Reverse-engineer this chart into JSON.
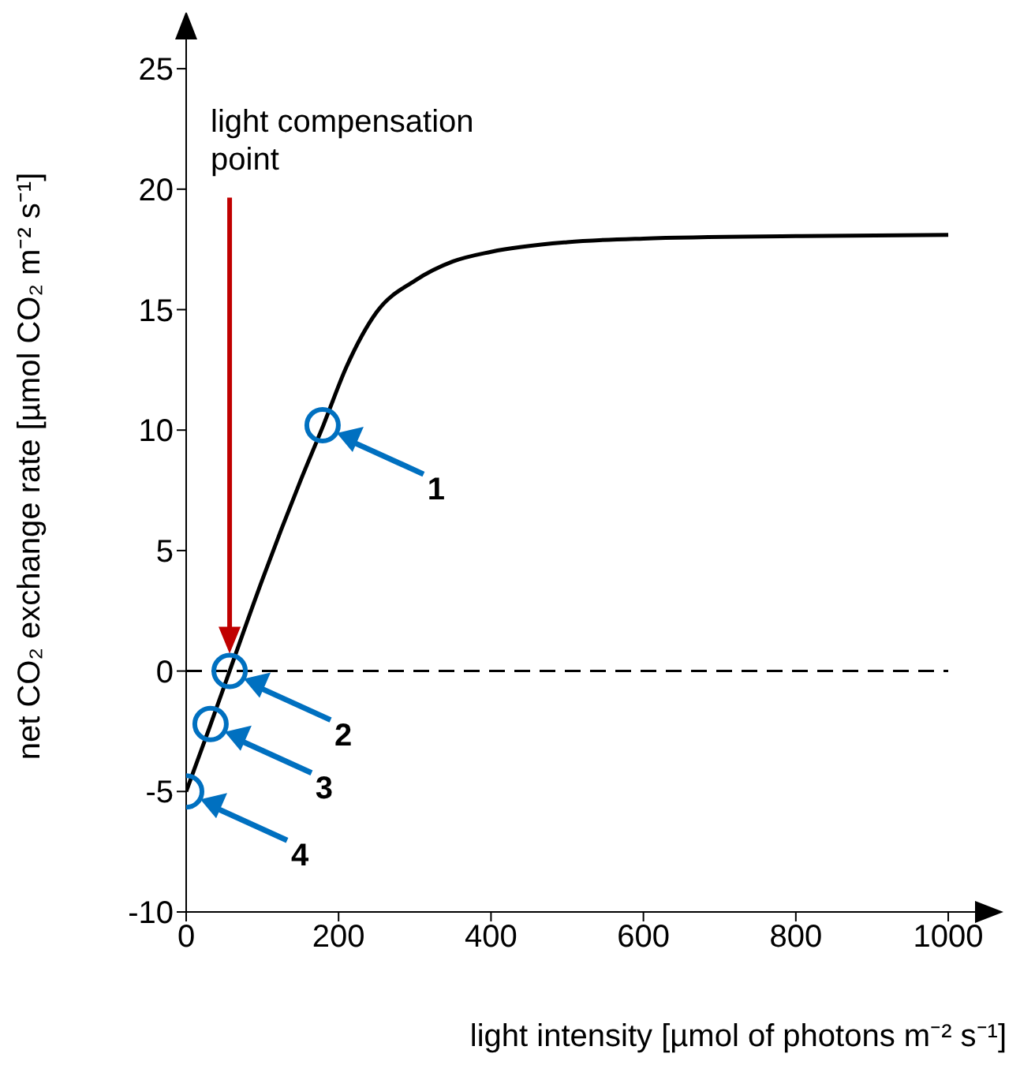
{
  "chart_data": {
    "type": "line",
    "xlabel": "light intensity [µmol of photons m⁻² s⁻¹]",
    "ylabel": "net CO₂ exchange rate  [µmol CO₂ m⁻² s⁻¹]",
    "xlim": [
      0,
      1060
    ],
    "ylim": [
      -10,
      27
    ],
    "xticks": [
      0,
      200,
      400,
      600,
      800,
      1000
    ],
    "yticks": [
      -10,
      -5,
      0,
      5,
      10,
      15,
      20,
      25
    ],
    "series": [
      {
        "type": "line",
        "color": "#000000",
        "marker": "none",
        "x": [
          0,
          30,
          57,
          100,
          150,
          180,
          210,
          250,
          300,
          350,
          400,
          500,
          600,
          800,
          1000
        ],
        "values": [
          -5,
          -2.4,
          0,
          3.8,
          7.9,
          10.2,
          12.6,
          14.9,
          16.2,
          17.0,
          17.4,
          17.8,
          17.95,
          18.05,
          18.1
        ]
      },
      {
        "type": "scatter",
        "color": "#0070c0",
        "marker": "circle",
        "x": [
          179,
          57,
          32,
          0
        ],
        "values": [
          10.2,
          0,
          -2.2,
          -5
        ]
      }
    ],
    "ref_lines": [
      {
        "axis": "y",
        "value": 0,
        "color": "#000000",
        "line_style": "dashed"
      }
    ],
    "annotations": [
      "light compensation point",
      "1",
      "2",
      "3",
      "4"
    ]
  }
}
